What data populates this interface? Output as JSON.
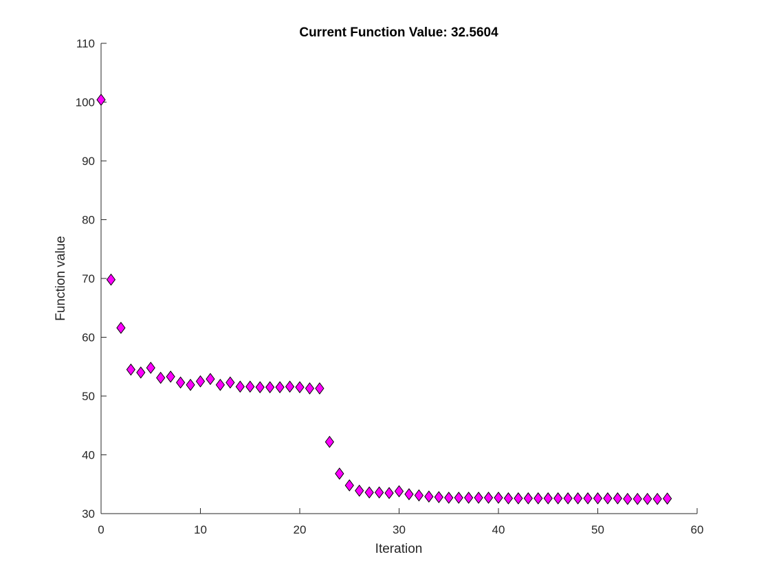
{
  "chart_data": {
    "type": "scatter",
    "title": "Current Function Value: 32.5604",
    "xlabel": "Iteration",
    "ylabel": "Function value",
    "xlim": [
      0,
      60
    ],
    "ylim": [
      30,
      110
    ],
    "xticks": [
      0,
      10,
      20,
      30,
      40,
      50,
      60
    ],
    "yticks": [
      30,
      40,
      50,
      60,
      70,
      80,
      90,
      100,
      110
    ],
    "xtick_labels": [
      "0",
      "10",
      "20",
      "30",
      "40",
      "50",
      "60"
    ],
    "ytick_labels": [
      "30",
      "40",
      "50",
      "60",
      "70",
      "80",
      "90",
      "100",
      "110"
    ],
    "grid": false,
    "marker": "diamond",
    "marker_color": "#FF00FF",
    "marker_edge_color": "#000000",
    "x": [
      0,
      1,
      2,
      3,
      4,
      5,
      6,
      7,
      8,
      9,
      10,
      11,
      12,
      13,
      14,
      15,
      16,
      17,
      18,
      19,
      20,
      21,
      22,
      23,
      24,
      25,
      26,
      27,
      28,
      29,
      30,
      31,
      32,
      33,
      34,
      35,
      36,
      37,
      38,
      39,
      40,
      41,
      42,
      43,
      44,
      45,
      46,
      47,
      48,
      49,
      50,
      51,
      52,
      53,
      54,
      55,
      56,
      57
    ],
    "y": [
      100.4,
      69.8,
      61.6,
      54.5,
      54.0,
      54.8,
      53.1,
      53.3,
      52.3,
      51.9,
      52.5,
      52.9,
      51.9,
      52.3,
      51.6,
      51.6,
      51.5,
      51.5,
      51.5,
      51.6,
      51.5,
      51.3,
      51.3,
      42.2,
      36.8,
      34.8,
      33.9,
      33.6,
      33.6,
      33.5,
      33.8,
      33.3,
      33.1,
      32.9,
      32.8,
      32.7,
      32.7,
      32.7,
      32.7,
      32.7,
      32.7,
      32.6,
      32.6,
      32.6,
      32.6,
      32.6,
      32.6,
      32.6,
      32.6,
      32.6,
      32.6,
      32.6,
      32.6,
      32.5,
      32.5,
      32.5,
      32.5,
      32.56
    ]
  }
}
